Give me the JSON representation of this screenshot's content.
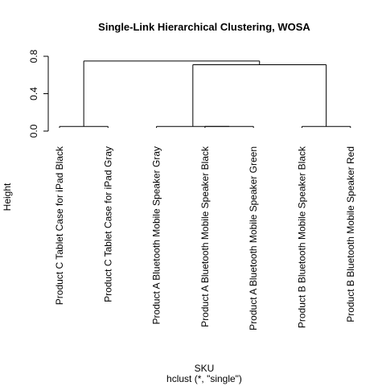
{
  "chart_data": {
    "type": "dendrogram",
    "title": "Single-Link Hierarchical Clustering, WOSA",
    "xlabel": "SKU",
    "sub": "hclust (*, \"single\")",
    "ylabel": "Height",
    "ylim": [
      0,
      0.8
    ],
    "yticks": [
      "0.0",
      "0.4",
      "0.8"
    ],
    "ytick_values": [
      0,
      0.4,
      0.8
    ],
    "line_color": "#000000",
    "leaves": [
      "Product C Tablet Case for iPad Black",
      "Product C Tablet Case for iPad Gray",
      "Product A Bluetooth Mobile Speaker Gray",
      "Product A Bluetooth Mobile Speaker Black",
      "Product A Bluetooth Mobile Speaker Green",
      "Product B Bluetooth Mobile Speaker Black",
      "Product B Bluetooth Mobile Speaker Red"
    ],
    "merges": [
      {
        "id": "m1",
        "left": "L0",
        "right": "L1",
        "height": 0.05
      },
      {
        "id": "m2",
        "left": "L3",
        "right": "L4",
        "height": 0.05
      },
      {
        "id": "m3",
        "left": "L2",
        "right": "m2",
        "height": 0.05
      },
      {
        "id": "m4",
        "left": "L5",
        "right": "L6",
        "height": 0.05
      },
      {
        "id": "m5",
        "left": "m3",
        "right": "m4",
        "height": 0.71
      },
      {
        "id": "m6",
        "left": "m1",
        "right": "m5",
        "height": 0.75
      }
    ]
  }
}
